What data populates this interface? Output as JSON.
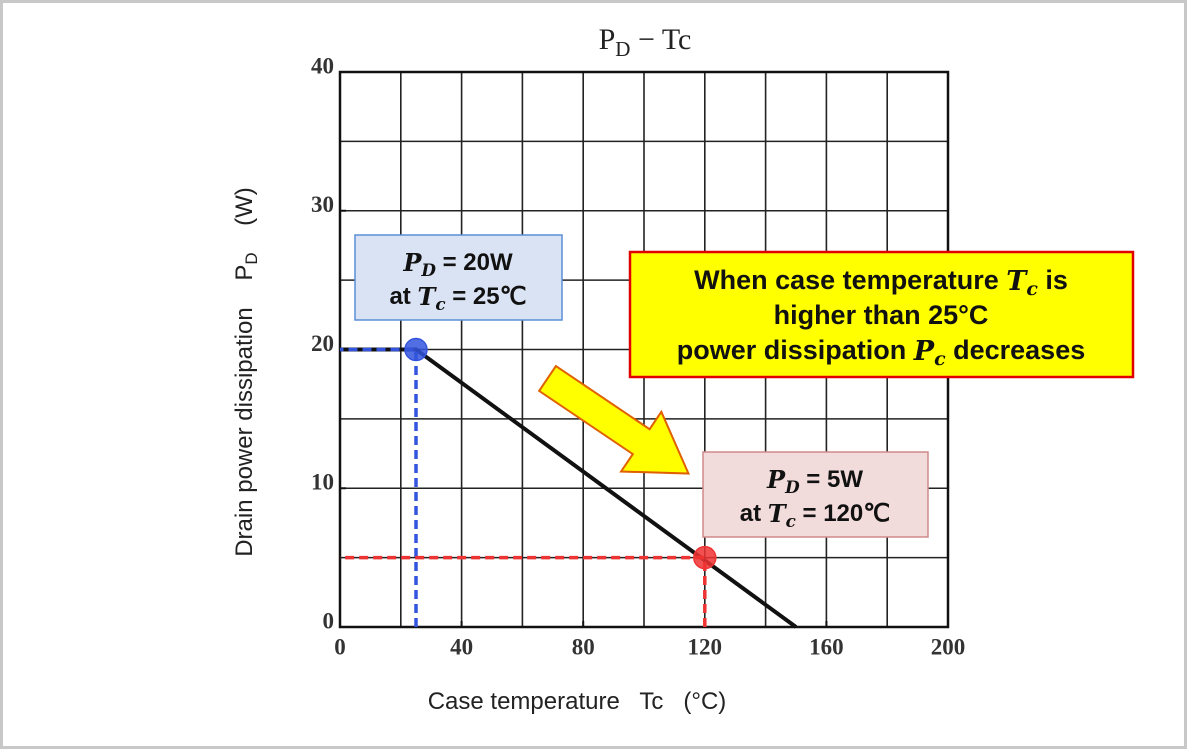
{
  "chart_data": {
    "type": "line",
    "title": [
      {
        "t": "P",
        "s": "n"
      },
      {
        "t": "D",
        "s": "sub"
      },
      {
        "t": " − Tc",
        "s": "n"
      }
    ],
    "xlabel": [
      {
        "t": "Case temperature   Tc   (°C)",
        "s": "n"
      }
    ],
    "ylabel": [
      {
        "t": "Drain power dissipation    P",
        "s": "n"
      },
      {
        "t": "D",
        "s": "sub"
      },
      {
        "t": "    (W)",
        "s": "n"
      }
    ],
    "x": [
      0,
      25,
      150
    ],
    "values": [
      20,
      20,
      0
    ],
    "color": "#111111",
    "xlim": [
      0,
      200
    ],
    "ylim": [
      0,
      40
    ],
    "xticks": [
      0,
      40,
      80,
      120,
      160,
      200
    ],
    "yticks": [
      0,
      10,
      20,
      30,
      40
    ],
    "xgrid": [
      20,
      40,
      60,
      80,
      100,
      120,
      140,
      160,
      180
    ],
    "ygrid": [
      5,
      10,
      15,
      20,
      25,
      30,
      35
    ],
    "points": [
      {
        "x": 25,
        "y": 20,
        "color": "#3355dd"
      },
      {
        "x": 120,
        "y": 5,
        "color": "#ee3333"
      }
    ],
    "annotations": [
      {
        "lines": [
          [
            {
              "t": "P",
              "s": "i"
            },
            {
              "t": "D",
              "s": "isub"
            },
            {
              "t": " = 20W",
              "s": "n"
            }
          ],
          [
            {
              "t": "at ",
              "s": "n"
            },
            {
              "t": "T",
              "s": "i"
            },
            {
              "t": "c",
              "s": "isub"
            },
            {
              "t": " = 25℃",
              "s": "n"
            }
          ]
        ]
      },
      {
        "lines": [
          [
            {
              "t": "P",
              "s": "i"
            },
            {
              "t": "D",
              "s": "isub"
            },
            {
              "t": " = 5W",
              "s": "n"
            }
          ],
          [
            {
              "t": "at ",
              "s": "n"
            },
            {
              "t": "T",
              "s": "i"
            },
            {
              "t": "c",
              "s": "isub"
            },
            {
              "t": " = 120℃",
              "s": "n"
            }
          ]
        ]
      },
      {
        "lines": [
          [
            {
              "t": "When case temperature ",
              "s": "n"
            },
            {
              "t": "T",
              "s": "i"
            },
            {
              "t": "c",
              "s": "isub"
            },
            {
              "t": " is",
              "s": "n"
            }
          ],
          [
            {
              "t": "higher than 25°C",
              "s": "n"
            }
          ],
          [
            {
              "t": "power dissipation ",
              "s": "n"
            },
            {
              "t": "P",
              "s": "i"
            },
            {
              "t": "c",
              "s": "isub"
            },
            {
              "t": " decreases",
              "s": "n"
            }
          ]
        ]
      }
    ]
  }
}
